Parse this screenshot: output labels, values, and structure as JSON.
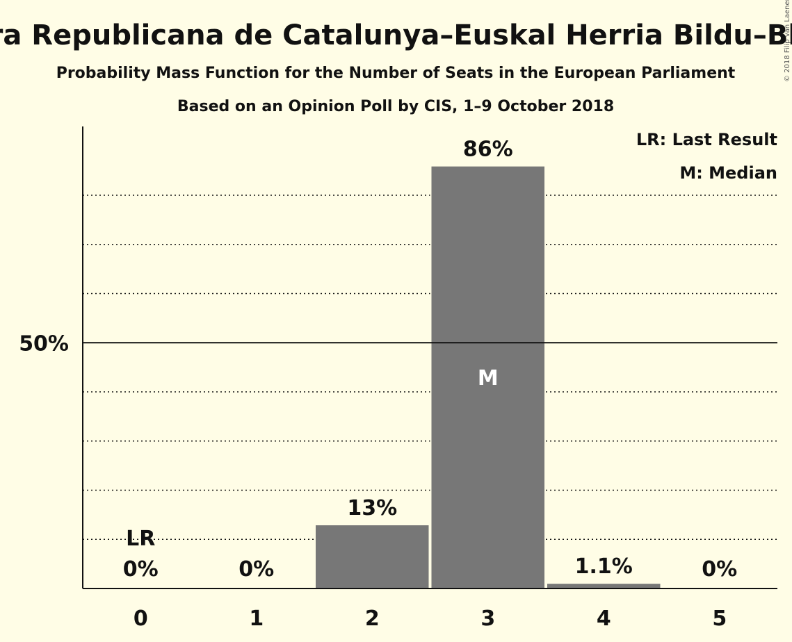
{
  "chart_data": {
    "type": "bar",
    "title": "Ahora Repúblicas–Esquerra Republicana de Catalunya–Euskal Herria Bildu–Bloque Nacionalista Galego",
    "subtitle": "Probability Mass Function for the Number of Seats in the European Parliament",
    "subtitle2": "Based on an Opinion Poll by CIS, 1–9 October 2018",
    "copyright": "© 2018 Filip van Laenen",
    "categories": [
      "0",
      "1",
      "2",
      "3",
      "4",
      "5"
    ],
    "values": [
      0,
      0,
      13,
      86,
      1.1,
      0
    ],
    "value_labels": [
      "0%",
      "0%",
      "13%",
      "86%",
      "1.1%",
      "0%"
    ],
    "ylim": [
      0,
      94
    ],
    "yticks": [
      {
        "value": 50,
        "label": "50%"
      }
    ],
    "gridlines": [
      10,
      20,
      30,
      40,
      60,
      70,
      80
    ],
    "last_result_index": 0,
    "last_result_label": "LR",
    "median_index": 3,
    "median_label": "M",
    "legend": [
      "LR: Last Result",
      "M: Median"
    ],
    "legend_position": "top-right",
    "colors": {
      "bar": "#777777",
      "background": "#fffde6",
      "text": "#111111",
      "median_text": "#ffffff"
    }
  }
}
